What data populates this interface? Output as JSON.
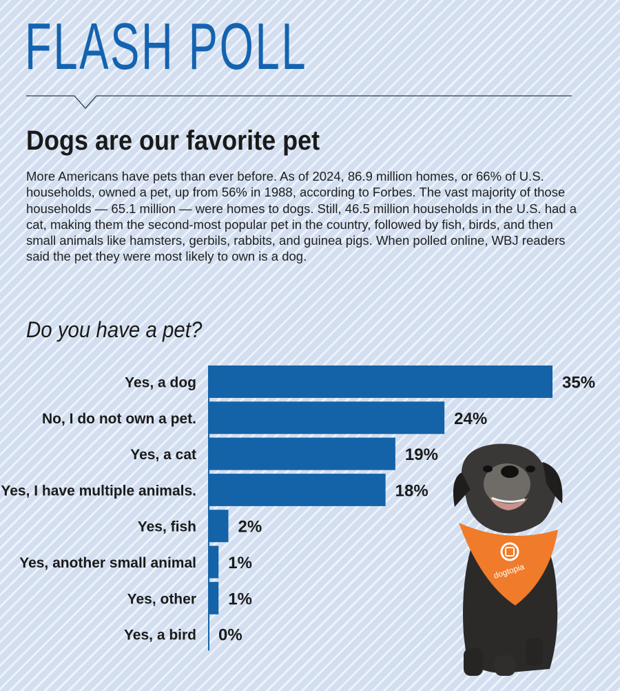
{
  "header": {
    "title": "FLASH POLL"
  },
  "article": {
    "headline": "Dogs are our favorite pet",
    "intro": "More Americans have pets than ever before. As of 2024, 86.9 million homes, or 66% of U.S. households, owned a pet, up from 56% in 1988, according to Forbes. The vast majority of those households — 65.1 million — were homes to dogs. Still, 46.5 million households in the U.S. had a cat, making them the second-most popular pet in the country, followed by fish, birds, and then small animals like hamsters, gerbils, rabbits, and guinea pigs. When polled online, WBJ readers said the pet they were most likely to own is a dog."
  },
  "chart_data": {
    "type": "bar",
    "orientation": "horizontal",
    "title": "Do you have a pet?",
    "categories": [
      "Yes, a dog",
      "No, I do not own a pet.",
      "Yes, a cat",
      "Yes, I have multiple animals.",
      "Yes, fish",
      "Yes, another small animal",
      "Yes, other",
      "Yes, a bird"
    ],
    "values": [
      35,
      24,
      19,
      18,
      2,
      1,
      1,
      0
    ],
    "value_labels": [
      "35%",
      "24%",
      "19%",
      "18%",
      "2%",
      "1%",
      "1%",
      "0%"
    ],
    "unit": "%",
    "xlim": [
      0,
      35
    ],
    "bar_color": "#1463a8",
    "grid": false,
    "legend": "none"
  },
  "photo": {
    "subject": "dog-wearing-orange-bandana",
    "bandana_text": "dogtopia",
    "bandana_color": "#f07b2a"
  },
  "colors": {
    "accent": "#1463b0",
    "background": "#d3dff0"
  }
}
